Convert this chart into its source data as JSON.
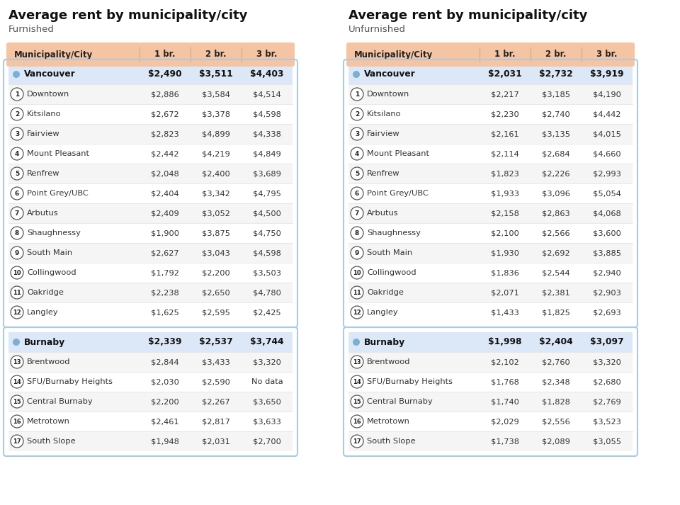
{
  "title": "Average rent by municipality/city",
  "furnished_subtitle": "Furnished",
  "unfurnished_subtitle": "Unfurnished",
  "header_cols": [
    "Municipality/City",
    "1 br.",
    "2 br.",
    "3 br."
  ],
  "header_bg": "#f5c5a3",
  "header_border": "#e8a882",
  "city_bg": "#dce8f7",
  "row_alt_bg": "#f5f5f5",
  "row_bg": "#ffffff",
  "border_color": "#aacae6",
  "dot_color": "#7bafd4",
  "furnished": {
    "cities": [
      {
        "name": "Vancouver",
        "is_city": true,
        "br1": "$2,490",
        "br2": "$3,511",
        "br3": "$4,403"
      },
      {
        "name": "Downtown",
        "num": "1",
        "br1": "$2,886",
        "br2": "$3,584",
        "br3": "$4,514"
      },
      {
        "name": "Kitsilano",
        "num": "2",
        "br1": "$2,672",
        "br2": "$3,378",
        "br3": "$4,598"
      },
      {
        "name": "Fairview",
        "num": "3",
        "br1": "$2,823",
        "br2": "$4,899",
        "br3": "$4,338"
      },
      {
        "name": "Mount Pleasant",
        "num": "4",
        "br1": "$2,442",
        "br2": "$4,219",
        "br3": "$4,849"
      },
      {
        "name": "Renfrew",
        "num": "5",
        "br1": "$2,048",
        "br2": "$2,400",
        "br3": "$3,689"
      },
      {
        "name": "Point Grey/UBC",
        "num": "6",
        "br1": "$2,404",
        "br2": "$3,342",
        "br3": "$4,795"
      },
      {
        "name": "Arbutus",
        "num": "7",
        "br1": "$2,409",
        "br2": "$3,052",
        "br3": "$4,500"
      },
      {
        "name": "Shaughnessy",
        "num": "8",
        "br1": "$1,900",
        "br2": "$3,875",
        "br3": "$4,750"
      },
      {
        "name": "South Main",
        "num": "9",
        "br1": "$2,627",
        "br2": "$3,043",
        "br3": "$4,598"
      },
      {
        "name": "Collingwood",
        "num": "10",
        "br1": "$1,792",
        "br2": "$2,200",
        "br3": "$3,503"
      },
      {
        "name": "Oakridge",
        "num": "11",
        "br1": "$2,238",
        "br2": "$2,650",
        "br3": "$4,780"
      },
      {
        "name": "Langley",
        "num": "12",
        "br1": "$1,625",
        "br2": "$2,595",
        "br3": "$2,425"
      }
    ],
    "burnaby": [
      {
        "name": "Burnaby",
        "is_city": true,
        "br1": "$2,339",
        "br2": "$2,537",
        "br3": "$3,744"
      },
      {
        "name": "Brentwood",
        "num": "13",
        "br1": "$2,844",
        "br2": "$3,433",
        "br3": "$3,320"
      },
      {
        "name": "SFU/Burnaby Heights",
        "num": "14",
        "br1": "$2,030",
        "br2": "$2,590",
        "br3": "No data"
      },
      {
        "name": "Central Burnaby",
        "num": "15",
        "br1": "$2,200",
        "br2": "$2,267",
        "br3": "$3,650"
      },
      {
        "name": "Metrotown",
        "num": "16",
        "br1": "$2,461",
        "br2": "$2,817",
        "br3": "$3,633"
      },
      {
        "name": "South Slope",
        "num": "17",
        "br1": "$1,948",
        "br2": "$2,031",
        "br3": "$2,700"
      }
    ]
  },
  "unfurnished": {
    "cities": [
      {
        "name": "Vancouver",
        "is_city": true,
        "br1": "$2,031",
        "br2": "$2,732",
        "br3": "$3,919"
      },
      {
        "name": "Downtown",
        "num": "1",
        "br1": "$2,217",
        "br2": "$3,185",
        "br3": "$4,190"
      },
      {
        "name": "Kitsilano",
        "num": "2",
        "br1": "$2,230",
        "br2": "$2,740",
        "br3": "$4,442"
      },
      {
        "name": "Fairview",
        "num": "3",
        "br1": "$2,161",
        "br2": "$3,135",
        "br3": "$4,015"
      },
      {
        "name": "Mount Pleasant",
        "num": "4",
        "br1": "$2,114",
        "br2": "$2,684",
        "br3": "$4,660"
      },
      {
        "name": "Renfrew",
        "num": "5",
        "br1": "$1,823",
        "br2": "$2,226",
        "br3": "$2,993"
      },
      {
        "name": "Point Grey/UBC",
        "num": "6",
        "br1": "$1,933",
        "br2": "$3,096",
        "br3": "$5,054"
      },
      {
        "name": "Arbutus",
        "num": "7",
        "br1": "$2,158",
        "br2": "$2,863",
        "br3": "$4,068"
      },
      {
        "name": "Shaughnessy",
        "num": "8",
        "br1": "$2,100",
        "br2": "$2,566",
        "br3": "$3,600"
      },
      {
        "name": "South Main",
        "num": "9",
        "br1": "$1,930",
        "br2": "$2,692",
        "br3": "$3,885"
      },
      {
        "name": "Collingwood",
        "num": "10",
        "br1": "$1,836",
        "br2": "$2,544",
        "br3": "$2,940"
      },
      {
        "name": "Oakridge",
        "num": "11",
        "br1": "$2,071",
        "br2": "$2,381",
        "br3": "$2,903"
      },
      {
        "name": "Langley",
        "num": "12",
        "br1": "$1,433",
        "br2": "$1,825",
        "br3": "$2,693"
      }
    ],
    "burnaby": [
      {
        "name": "Burnaby",
        "is_city": true,
        "br1": "$1,998",
        "br2": "$2,404",
        "br3": "$3,097"
      },
      {
        "name": "Brentwood",
        "num": "13",
        "br1": "$2,102",
        "br2": "$2,760",
        "br3": "$3,320"
      },
      {
        "name": "SFU/Burnaby Heights",
        "num": "14",
        "br1": "$1,768",
        "br2": "$2,348",
        "br3": "$2,680"
      },
      {
        "name": "Central Burnaby",
        "num": "15",
        "br1": "$1,740",
        "br2": "$1,828",
        "br3": "$2,769"
      },
      {
        "name": "Metrotown",
        "num": "16",
        "br1": "$2,029",
        "br2": "$2,556",
        "br3": "$3,523"
      },
      {
        "name": "South Slope",
        "num": "17",
        "br1": "$1,738",
        "br2": "$2,089",
        "br3": "$3,055"
      }
    ]
  },
  "bg_color": "#ffffff",
  "title_fontsize": 13,
  "subtitle_fontsize": 9.5,
  "header_fontsize": 8.5,
  "row_fontsize": 8.2,
  "city_fontsize": 8.8
}
